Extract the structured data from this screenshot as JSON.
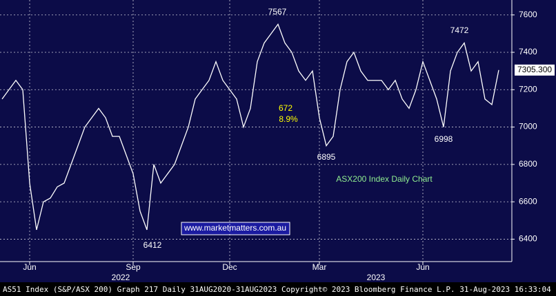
{
  "chart_data": {
    "type": "line",
    "categories": [
      null,
      null,
      null,
      null,
      "Jun",
      null,
      null,
      null,
      null,
      null,
      null,
      null,
      null,
      null,
      null,
      null,
      null,
      null,
      null,
      "Sep",
      null,
      null,
      null,
      null,
      null,
      null,
      null,
      null,
      null,
      null,
      null,
      null,
      null,
      "Dec",
      null,
      null,
      null,
      null,
      null,
      null,
      null,
      null,
      null,
      null,
      null,
      null,
      "Mar",
      null,
      null,
      null,
      null,
      null,
      null,
      null,
      null,
      null,
      null,
      null,
      null,
      null,
      null,
      "Jun",
      null,
      null,
      null,
      null,
      null,
      null,
      null,
      null,
      null,
      null,
      null
    ],
    "values": [
      7150,
      7200,
      7250,
      7200,
      6700,
      6450,
      6600,
      6620,
      6680,
      6700,
      6800,
      6900,
      7000,
      7050,
      7100,
      7050,
      6950,
      6950,
      6850,
      6750,
      6550,
      6450,
      6800,
      6700,
      6750,
      6800,
      6900,
      7000,
      7150,
      7200,
      7250,
      7350,
      7250,
      7200,
      7150,
      7000,
      7100,
      7350,
      7450,
      7500,
      7550,
      7450,
      7400,
      7300,
      7250,
      7300,
      7050,
      6900,
      6950,
      7200,
      7350,
      7400,
      7300,
      7250,
      7250,
      7250,
      7200,
      7250,
      7150,
      7100,
      7200,
      7350,
      7250,
      7150,
      7000,
      7300,
      7400,
      7450,
      7300,
      7350,
      7150,
      7120,
      7305
    ],
    "color": "#ffffff",
    "years": [
      "2022",
      "2023"
    ],
    "ylim": [
      6280,
      7680
    ],
    "yticks": [
      6400,
      6600,
      6800,
      7000,
      7200,
      7400,
      7600
    ],
    "grid": true,
    "last_price": "7305.300",
    "annotations": [
      "7567",
      "7472",
      "6998",
      "6895",
      "6412",
      "672",
      "8.9%",
      "ASX200 Index Daily Chart"
    ],
    "watermark": "www.marketmatters.com.au",
    "footer": "AS51 Index (S&P/ASX 200) Graph 217  Daily 31AUG2020-31AUG2023  Copyright© 2023 Bloomberg Finance L.P.   31-Aug-2023 16:33:04"
  }
}
